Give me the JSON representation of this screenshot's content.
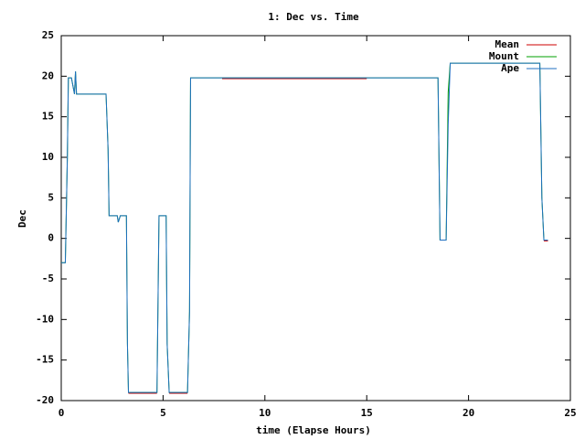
{
  "chart_data": {
    "type": "line",
    "title": "1: Dec vs. Time",
    "x_label": "time (Elapse Hours)",
    "y_label": "Dec",
    "x": [
      0,
      0.2,
      0.3,
      0.35,
      0.5,
      0.65,
      0.7,
      0.75,
      2.2,
      2.3,
      2.35,
      2.75,
      2.8,
      2.9,
      3.2,
      3.25,
      3.3,
      4.7,
      4.8,
      5.15,
      5.2,
      5.3,
      6.2,
      6.3,
      6.35,
      7.9,
      15,
      18.5,
      18.6,
      18.9,
      19.0,
      19.1,
      23.5,
      23.6,
      23.7,
      23.9
    ],
    "series": [
      {
        "name": "Mean",
        "color": "#cc0000",
        "values": [
          null,
          null,
          null,
          null,
          null,
          null,
          null,
          null,
          null,
          null,
          null,
          null,
          null,
          null,
          null,
          null,
          -19.1,
          -19.1,
          null,
          null,
          null,
          -19.1,
          -19.1,
          null,
          null,
          19.7,
          19.7,
          null,
          null,
          null,
          null,
          null,
          null,
          null,
          -0.3,
          -0.3
        ]
      },
      {
        "name": "Mount",
        "color": "#00a000",
        "values": [
          -3,
          -3,
          10,
          19.8,
          19.8,
          17.8,
          20.6,
          17.8,
          17.8,
          11,
          2.8,
          2.8,
          2,
          2.8,
          2.8,
          -13,
          -19,
          -19,
          2.8,
          2.8,
          -13,
          -19,
          -19,
          -9,
          19.8,
          19.8,
          19.8,
          19.8,
          -0.2,
          -0.2,
          18,
          21.6,
          21.6,
          5,
          -0.2,
          -0.2
        ]
      },
      {
        "name": "Ape",
        "color": "#1f6fc0",
        "values": [
          -3,
          -3,
          10,
          19.8,
          19.8,
          17.8,
          20.6,
          17.8,
          17.8,
          11,
          2.8,
          2.8,
          2,
          2.8,
          2.8,
          -13,
          -19,
          -19,
          2.8,
          2.8,
          -13,
          -19,
          -19,
          -9,
          19.8,
          19.8,
          19.8,
          19.8,
          -0.2,
          -0.2,
          14,
          21.6,
          21.6,
          5,
          -0.2,
          -0.2
        ]
      }
    ],
    "xlim": [
      0,
      25
    ],
    "xticks": [
      0,
      5,
      10,
      15,
      20,
      25
    ],
    "ylim": [
      -20,
      25
    ],
    "yticks": [
      -20,
      -15,
      -10,
      -5,
      0,
      5,
      10,
      15,
      20,
      25
    ],
    "legend": "top-right",
    "grid": false
  }
}
